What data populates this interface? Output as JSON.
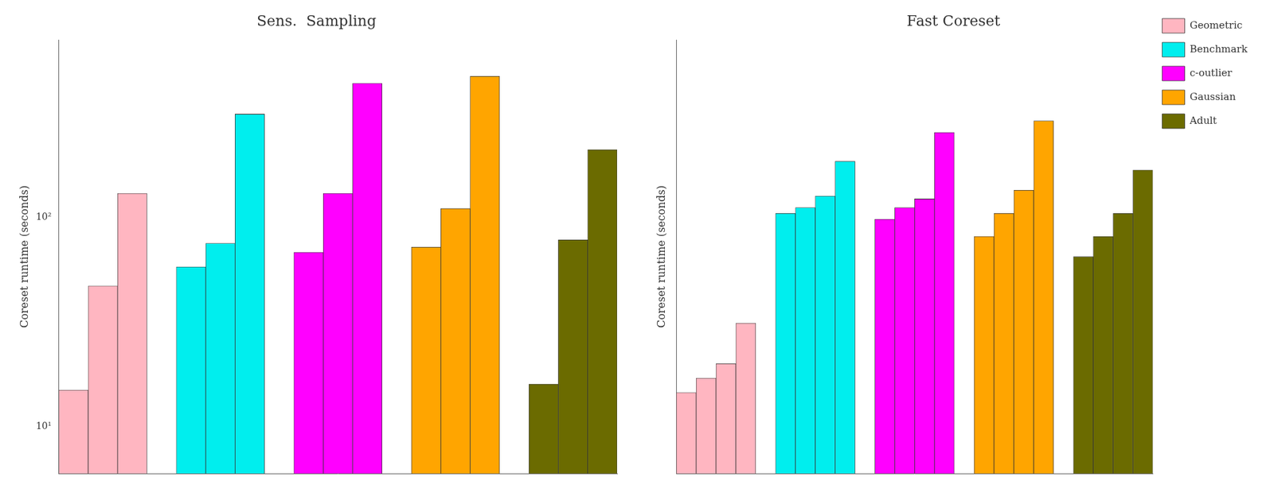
{
  "chart_data": [
    {
      "type": "bar",
      "title": "Sens.  Sampling",
      "ylabel": "Coreset runtime (seconds)",
      "categories": [
        null,
        null,
        null
      ],
      "series": [
        {
          "name": "Geometric",
          "color": "#FFB6C1",
          "values": [
            15.0,
            47.0,
            130.0
          ]
        },
        {
          "name": "Benchmark",
          "color": "#00EEEE",
          "values": [
            58.0,
            75.0,
            310.0
          ]
        },
        {
          "name": "c-outlier",
          "color": "#FF00FF",
          "values": [
            68.0,
            130.0,
            435.0
          ]
        },
        {
          "name": "Gaussian",
          "color": "#FFA500",
          "values": [
            72.0,
            110.0,
            470.0
          ]
        },
        {
          "name": "Adult",
          "color": "#6B6B00",
          "values": [
            16.0,
            78.0,
            210.0
          ]
        }
      ],
      "log": "y",
      "ylim": [
        6.0,
        700.0
      ],
      "yticks": [
        {
          "value": 10,
          "label": "10¹"
        },
        {
          "value": 100,
          "label": "10²"
        }
      ],
      "grid": false,
      "tick_labels": "y"
    },
    {
      "type": "bar",
      "title": "Fast Coreset",
      "ylabel": "Coreset runtime (seconds)",
      "categories": [
        null,
        null,
        null,
        null
      ],
      "series": [
        {
          "name": "Geometric",
          "color": "#FFB6C1",
          "values": [
            0.28,
            0.33,
            0.38,
            0.52
          ]
        },
        {
          "name": "Benchmark",
          "color": "#00EEEE",
          "values": [
            0.9,
            0.92,
            0.96,
            1.08
          ]
        },
        {
          "name": "c-outlier",
          "color": "#FF00FF",
          "values": [
            0.88,
            0.92,
            0.95,
            1.18
          ]
        },
        {
          "name": "Gaussian",
          "color": "#FFA500",
          "values": [
            0.82,
            0.9,
            0.98,
            1.22
          ]
        },
        {
          "name": "Adult",
          "color": "#6B6B00",
          "values": [
            0.75,
            0.82,
            0.9,
            1.05
          ]
        }
      ],
      "ylim": [
        0.0,
        1.5
      ],
      "yticks": [],
      "grid": false,
      "tick_labels": false,
      "legend": "upper right"
    }
  ]
}
